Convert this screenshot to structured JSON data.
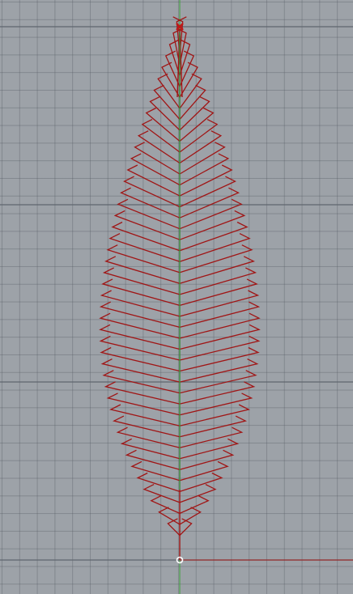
{
  "viewport": {
    "kind": "cad-perspective-viewport",
    "grid": true,
    "background_color": "#9da2a8",
    "grid_color": "#5f666e"
  },
  "colors": {
    "curve": "#a01515",
    "midrib": "#3a8a3a",
    "axis_x": "#a01515",
    "axis_y": "#3aa13a",
    "point_marker": "#c01818",
    "origin_marker": "#ffffff"
  },
  "geometry_objects": [
    "leaf-outline-ribs",
    "leaf-midrib",
    "top-point-marker",
    "origin-point-marker"
  ],
  "icons": {
    "top_marker": "x-cross-icon",
    "origin_marker": "circle-point-icon"
  }
}
